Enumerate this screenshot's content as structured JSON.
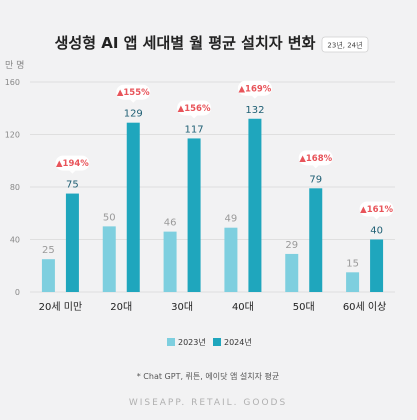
{
  "chart_data": {
    "type": "bar",
    "title": "생성형 AI 앱 세대별 월 평균 설치자 변화",
    "period_badge": "23년, 24년",
    "unit": "만 명",
    "categories": [
      "20세 미만",
      "20대",
      "30대",
      "40대",
      "50대",
      "60세 이상"
    ],
    "series": [
      {
        "name": "2023년",
        "values": [
          25,
          50,
          46,
          49,
          29,
          15
        ]
      },
      {
        "name": "2024년",
        "values": [
          75,
          129,
          117,
          132,
          79,
          40
        ]
      }
    ],
    "value_labels": {
      "2023": [
        "25",
        "50",
        "46",
        "49",
        "29",
        "15"
      ],
      "2024": [
        "75",
        "129",
        "117",
        "132",
        "79",
        "40"
      ]
    },
    "growth_labels": [
      "▲194%",
      "▲155%",
      "▲156%",
      "▲169%",
      "▲168%",
      "▲161%"
    ],
    "yticks": [
      0,
      40,
      80,
      120,
      160
    ],
    "ytick_labels": [
      "0",
      "40",
      "80",
      "120",
      "160"
    ],
    "ylim": [
      0,
      160
    ],
    "grid": true,
    "legend_position": "bottom-center",
    "note": "* Chat GPT, 뤼튼, 에이닷 앱 설치자 평균",
    "watermark": "WISEAPP. RETAIL. GOODS",
    "colors": {
      "bar_2023": "#7ecfdf",
      "bar_2024": "#1fa6bd",
      "growth": "#e8545a",
      "grid": "#d9d9d9"
    }
  }
}
